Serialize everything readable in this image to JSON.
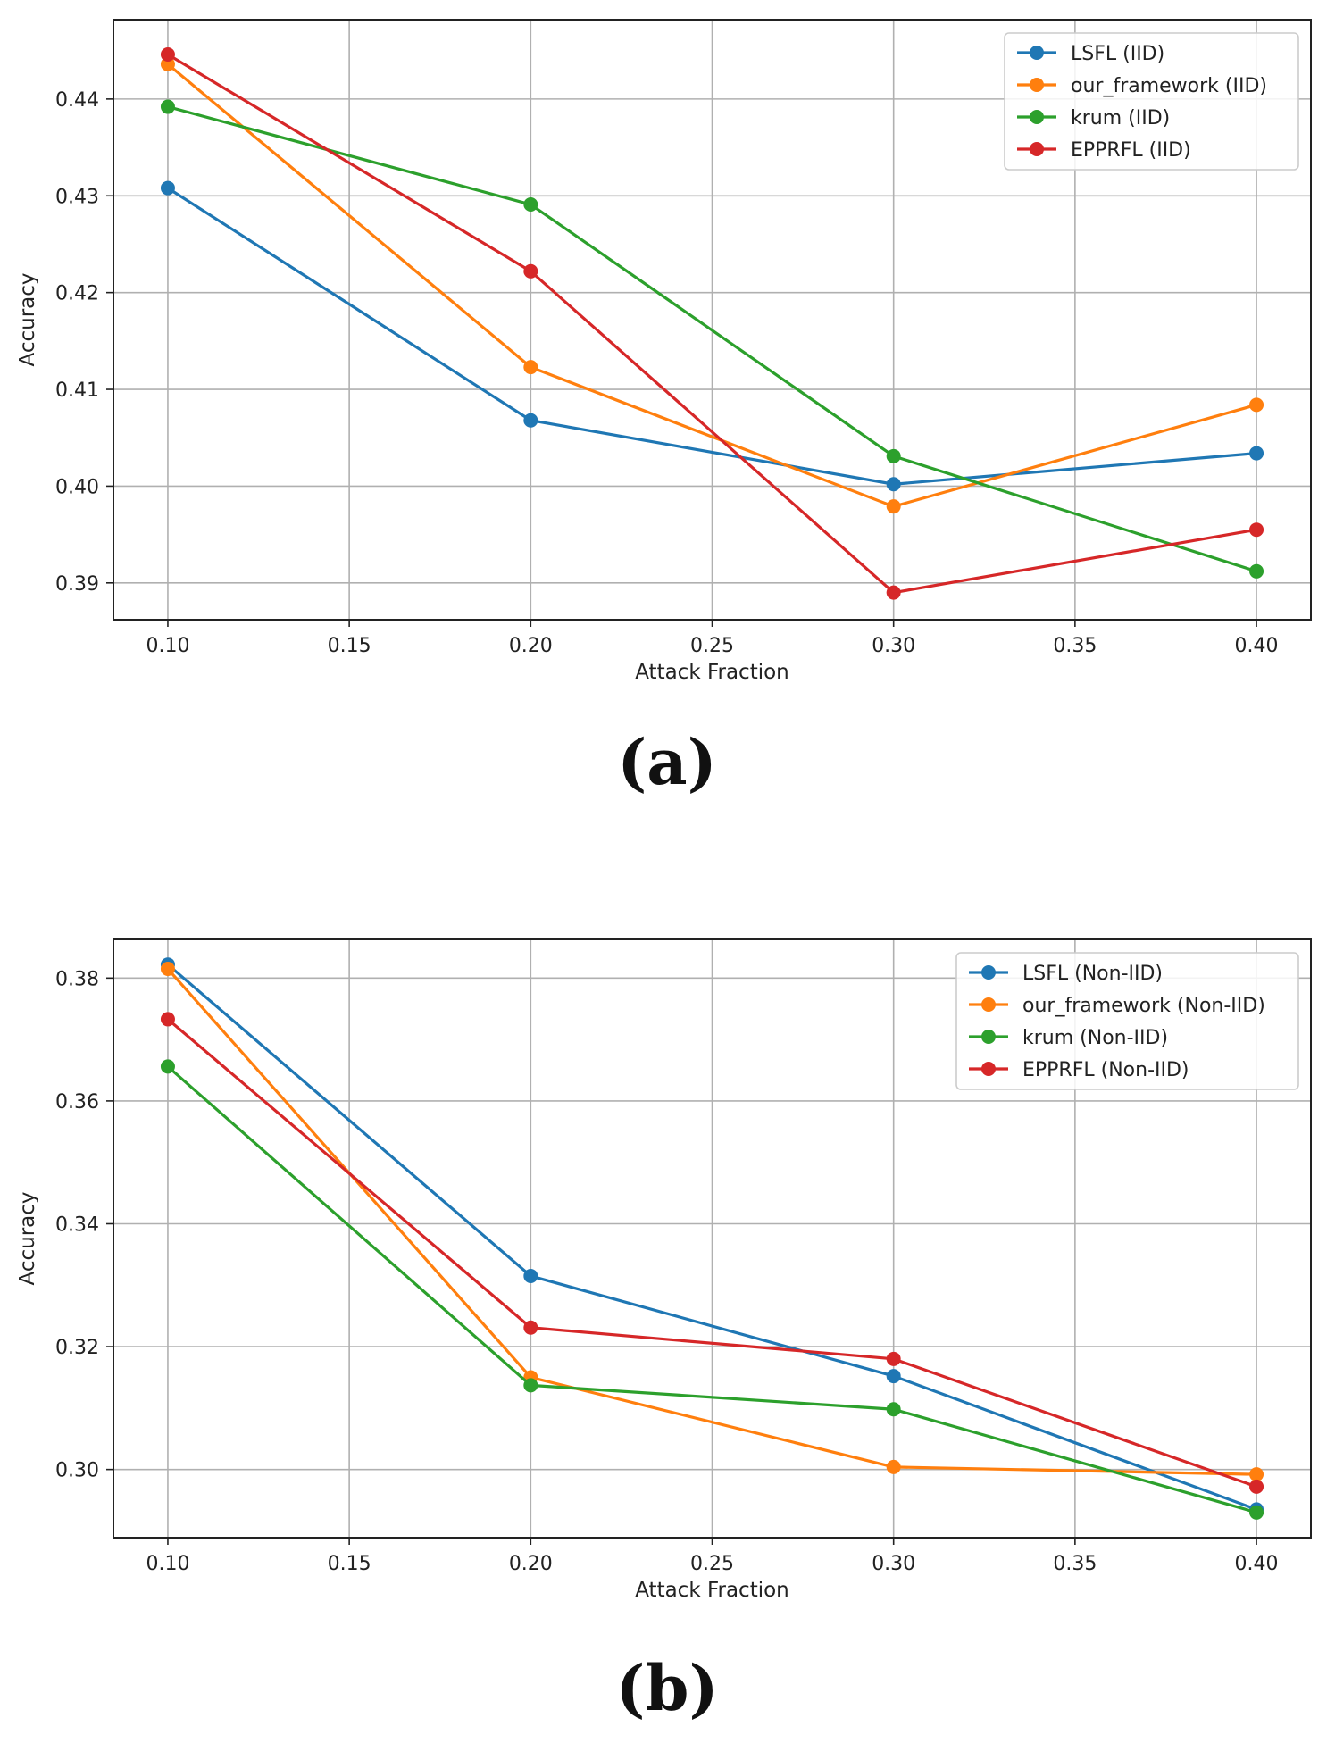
{
  "chart_data": [
    {
      "type": "line",
      "panel_label": "(a)",
      "xlabel": "Attack Fraction",
      "ylabel": "Accuracy",
      "xlim": [
        0.085,
        0.415
      ],
      "ylim": [
        0.3862,
        0.4482
      ],
      "xticks": [
        0.1,
        0.15,
        0.2,
        0.25,
        0.3,
        0.35,
        0.4
      ],
      "xtick_labels": [
        "0.10",
        "0.15",
        "0.20",
        "0.25",
        "0.30",
        "0.35",
        "0.40"
      ],
      "yticks": [
        0.39,
        0.4,
        0.41,
        0.42,
        0.43,
        0.44
      ],
      "ytick_labels": [
        "0.39",
        "0.40",
        "0.41",
        "0.42",
        "0.43",
        "0.44"
      ],
      "grid": true,
      "legend_position": "top-right",
      "x": [
        0.1,
        0.2,
        0.3,
        0.4
      ],
      "series": [
        {
          "name": "LSFL (IID)",
          "color": "#1f77b4",
          "values": [
            0.4308,
            0.4068,
            0.4002,
            0.4034
          ]
        },
        {
          "name": "our_framework (IID)",
          "color": "#ff7f0e",
          "values": [
            0.4436,
            0.4123,
            0.3979,
            0.4084
          ]
        },
        {
          "name": "krum (IID)",
          "color": "#2ca02c",
          "values": [
            0.4392,
            0.4291,
            0.4031,
            0.3912
          ]
        },
        {
          "name": "EPPRFL (IID)",
          "color": "#d62728",
          "values": [
            0.4446,
            0.4222,
            0.389,
            0.3955
          ]
        }
      ]
    },
    {
      "type": "line",
      "panel_label": "(b)",
      "xlabel": "Attack Fraction",
      "ylabel": "Accuracy",
      "xlim": [
        0.085,
        0.415
      ],
      "ylim": [
        0.2889,
        0.3863
      ],
      "xticks": [
        0.1,
        0.15,
        0.2,
        0.25,
        0.3,
        0.35,
        0.4
      ],
      "xtick_labels": [
        "0.10",
        "0.15",
        "0.20",
        "0.25",
        "0.30",
        "0.35",
        "0.40"
      ],
      "yticks": [
        0.3,
        0.32,
        0.34,
        0.36,
        0.38
      ],
      "ytick_labels": [
        "0.30",
        "0.32",
        "0.34",
        "0.36",
        "0.38"
      ],
      "grid": true,
      "legend_position": "top-right",
      "x": [
        0.1,
        0.2,
        0.3,
        0.4
      ],
      "series": [
        {
          "name": "LSFL (Non-IID)",
          "color": "#1f77b4",
          "values": [
            0.3822,
            0.3315,
            0.3152,
            0.2935
          ]
        },
        {
          "name": "our_framework (Non-IID)",
          "color": "#ff7f0e",
          "values": [
            0.3815,
            0.315,
            0.3004,
            0.2992
          ]
        },
        {
          "name": "krum (Non-IID)",
          "color": "#2ca02c",
          "values": [
            0.3656,
            0.3137,
            0.3098,
            0.293
          ]
        },
        {
          "name": "EPPRFL (Non-IID)",
          "color": "#d62728",
          "values": [
            0.3733,
            0.3231,
            0.318,
            0.2972
          ]
        }
      ]
    }
  ]
}
